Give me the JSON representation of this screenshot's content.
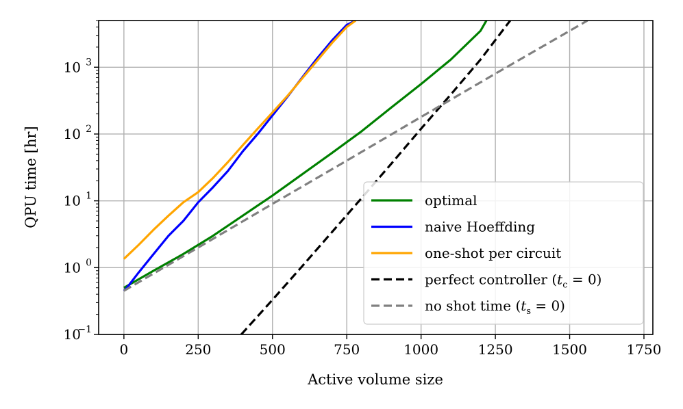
{
  "chart_data": {
    "type": "line",
    "xlabel": "Active volume size",
    "ylabel": "QPU time [hr]",
    "yscale": "log",
    "xlim": [
      -85,
      1780
    ],
    "ylim": [
      0.1,
      5000
    ],
    "grid": true,
    "legend_position": "lower-right",
    "x_ticks": [
      0,
      250,
      500,
      750,
      1000,
      1250,
      1500,
      1750
    ],
    "x_tick_labels": [
      "0",
      "250",
      "500",
      "750",
      "1000",
      "1250",
      "1500",
      "1750"
    ],
    "y_ticks": [
      0.1,
      1,
      10,
      100,
      1000
    ],
    "y_tick_labels": [
      {
        "base": "10",
        "exp": "−1"
      },
      {
        "base": "10",
        "exp": "0"
      },
      {
        "base": "10",
        "exp": "1"
      },
      {
        "base": "10",
        "exp": "2"
      },
      {
        "base": "10",
        "exp": "3"
      }
    ],
    "series": [
      {
        "name": "optimal",
        "color": "#008000",
        "dash": "solid",
        "x": [
          0,
          100,
          200,
          300,
          400,
          500,
          600,
          700,
          800,
          900,
          1000,
          1100,
          1200,
          1220
        ],
        "y": [
          0.5,
          0.9,
          1.6,
          3.0,
          6.0,
          12,
          25,
          52,
          110,
          250,
          560,
          1300,
          3500,
          5000
        ]
      },
      {
        "name": "naive Hoeffding",
        "color": "#0000ff",
        "dash": "solid",
        "x": [
          0,
          10,
          50,
          100,
          150,
          200,
          250,
          300,
          350,
          400,
          450,
          500,
          550,
          600,
          650,
          700,
          750,
          780
        ],
        "y": [
          0.45,
          0.5,
          0.85,
          1.6,
          3.0,
          5.0,
          9.5,
          16,
          28,
          55,
          100,
          190,
          360,
          700,
          1350,
          2500,
          4300,
          5000
        ]
      },
      {
        "name": "one-shot per circuit",
        "color": "#ffa500",
        "dash": "solid",
        "x": [
          0,
          50,
          100,
          150,
          200,
          250,
          300,
          350,
          400,
          450,
          500,
          550,
          600,
          650,
          700,
          750,
          780
        ],
        "y": [
          1.35,
          2.2,
          3.7,
          6.0,
          9.5,
          13.5,
          22,
          38,
          68,
          120,
          210,
          370,
          680,
          1250,
          2300,
          4000,
          5000
        ]
      },
      {
        "name": "perfect controller (t_c = 0)",
        "color": "#000000",
        "dash": "dashed",
        "x": [
          395,
          500,
          600,
          700,
          800,
          900,
          1000,
          1100,
          1200,
          1300
        ],
        "y": [
          0.1,
          0.33,
          1.05,
          3.4,
          11,
          36,
          120,
          390,
          1300,
          5000
        ]
      },
      {
        "name": "no shot time (t_s = 0)",
        "color": "#808080",
        "dash": "dashed",
        "x": [
          0,
          250,
          500,
          750,
          1000,
          1250,
          1560
        ],
        "y": [
          0.45,
          2.0,
          9.0,
          40,
          180,
          800,
          5000
        ]
      }
    ],
    "legend": [
      {
        "main": "optimal"
      },
      {
        "main": "naive Hoeffding"
      },
      {
        "main": "one-shot per circuit"
      },
      {
        "main": "perfect controller (",
        "var": "t",
        "sub": "c",
        "tail": " = 0)"
      },
      {
        "main": "no shot time (",
        "var": "t",
        "sub": "s",
        "tail": " = 0)"
      }
    ]
  }
}
